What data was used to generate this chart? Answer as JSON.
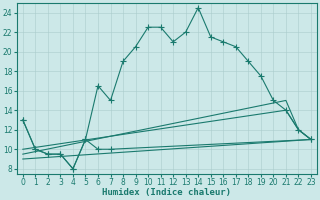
{
  "background_color": "#cce8e8",
  "grid_color": "#aacccc",
  "line_color": "#1a7a6e",
  "xlabel": "Humidex (Indice chaleur)",
  "xlim": [
    -0.5,
    23.5
  ],
  "ylim": [
    7.5,
    25.0
  ],
  "xticks": [
    0,
    1,
    2,
    3,
    4,
    5,
    6,
    7,
    8,
    9,
    10,
    11,
    12,
    13,
    14,
    15,
    16,
    17,
    18,
    19,
    20,
    21,
    22,
    23
  ],
  "yticks": [
    8,
    10,
    12,
    14,
    16,
    18,
    20,
    22,
    24
  ],
  "label_fontsize": 6.5,
  "tick_fontsize": 5.5,
  "lines": [
    {
      "x": [
        0,
        1,
        2,
        3,
        4,
        5,
        6,
        7,
        8,
        9,
        10,
        11,
        12,
        13,
        14,
        15,
        16,
        17,
        18,
        19,
        20,
        21,
        22,
        23
      ],
      "y": [
        13,
        10,
        9.5,
        9.5,
        8,
        11,
        16.5,
        15,
        19,
        20.5,
        22.5,
        22.5,
        21,
        22,
        24.5,
        21.5,
        21,
        20.5,
        19,
        17.5,
        15,
        14,
        12,
        11
      ],
      "marker": true
    },
    {
      "x": [
        0,
        1,
        2,
        3,
        4,
        5,
        6,
        7,
        23
      ],
      "y": [
        13,
        10,
        9.5,
        9.5,
        8,
        11,
        10,
        10,
        11
      ],
      "marker": true
    },
    {
      "x": [
        0,
        21,
        22,
        23
      ],
      "y": [
        10,
        14,
        12,
        11
      ],
      "marker": false
    },
    {
      "x": [
        0,
        21,
        22,
        23
      ],
      "y": [
        9.5,
        15,
        12,
        11
      ],
      "marker": false
    },
    {
      "x": [
        0,
        23
      ],
      "y": [
        9,
        11
      ],
      "marker": false
    }
  ]
}
